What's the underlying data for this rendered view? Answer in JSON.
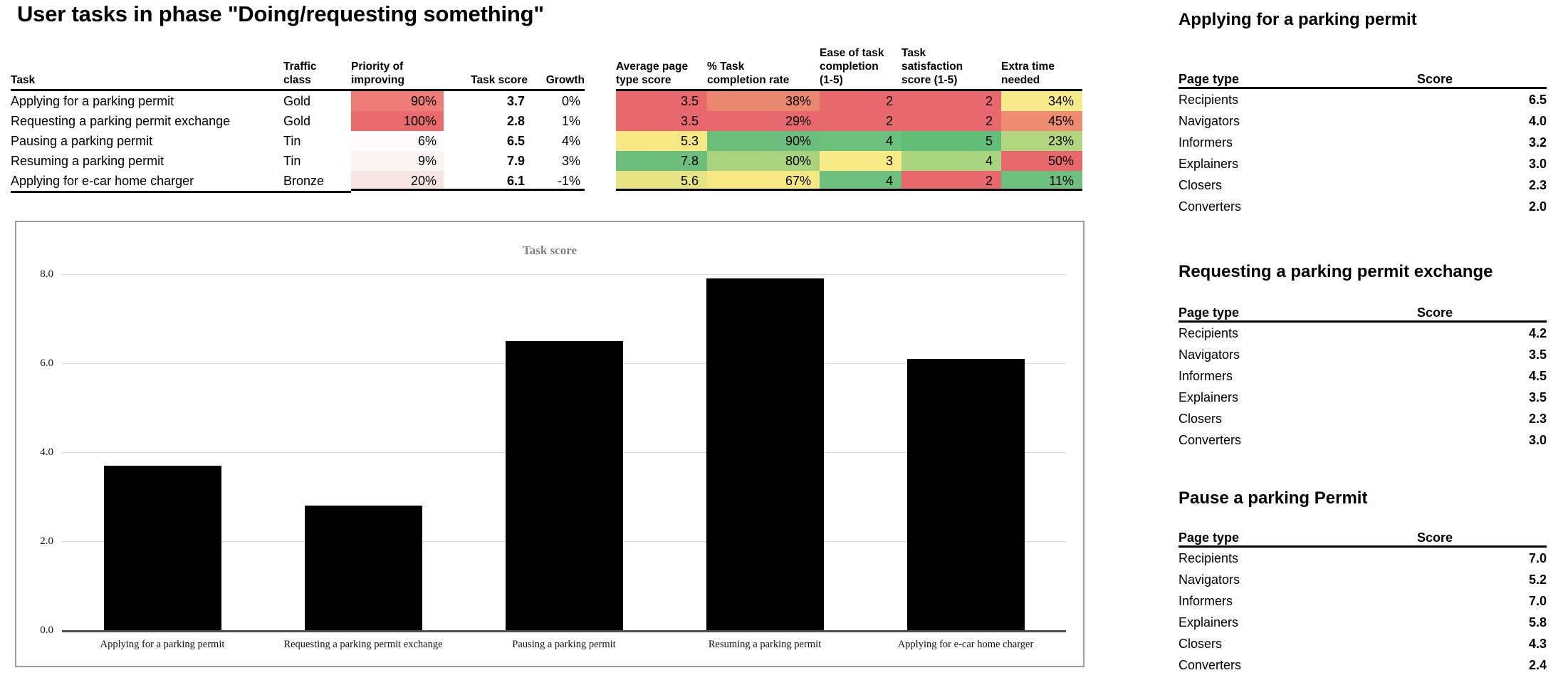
{
  "title": "User tasks in phase \"Doing/requesting something\"",
  "main_table": {
    "headers": {
      "task": "Task",
      "traffic_class": "Traffic\nclass",
      "priority": "Priority of\nimproving",
      "task_score": "Task score",
      "growth": "Growth",
      "avg_page_score": "Average page\ntype score",
      "completion_rate": "% Task\ncompletion rate",
      "ease": "Ease of task\ncompletion\n(1-5)",
      "satisfaction": "Task\nsatisfaction\nscore (1-5)",
      "extra_time": "Extra time\nneeded"
    },
    "rows": [
      {
        "task": "Applying for a parking permit",
        "traffic_class": "Gold",
        "priority": "90%",
        "task_score": "3.7",
        "growth": "0%",
        "avg_page_score": "3.5",
        "completion_rate": "38%",
        "ease": "2",
        "satisfaction": "2",
        "extra_time": "34%",
        "colors": {
          "priority": "#EE7C77",
          "avg_page_score": "#E7696D",
          "completion_rate": "#EA8770",
          "ease": "#E7696D",
          "satisfaction": "#E7696D",
          "extra_time": "#F8E98A"
        }
      },
      {
        "task": "Requesting a parking permit exchange",
        "traffic_class": "Gold",
        "priority": "100%",
        "task_score": "2.8",
        "growth": "1%",
        "avg_page_score": "3.5",
        "completion_rate": "29%",
        "ease": "2",
        "satisfaction": "2",
        "extra_time": "45%",
        "colors": {
          "priority": "#EA6B6E",
          "avg_page_score": "#E7696D",
          "completion_rate": "#E7696D",
          "ease": "#E7696D",
          "satisfaction": "#E7696D",
          "extra_time": "#EE8C72"
        }
      },
      {
        "task": "Pausing a parking permit",
        "traffic_class": "Tin",
        "priority": "6%",
        "task_score": "6.5",
        "growth": "4%",
        "avg_page_score": "5.3",
        "completion_rate": "90%",
        "ease": "4",
        "satisfaction": "5",
        "extra_time": "23%",
        "colors": {
          "priority": "#FDFBFB",
          "avg_page_score": "#F7E884",
          "completion_rate": "#6DBE7C",
          "ease": "#6CBF7C",
          "satisfaction": "#63BE7A",
          "extra_time": "#B2D680"
        }
      },
      {
        "task": "Resuming a parking permit",
        "traffic_class": "Tin",
        "priority": "9%",
        "task_score": "7.9",
        "growth": "3%",
        "avg_page_score": "7.8",
        "completion_rate": "80%",
        "ease": "3",
        "satisfaction": "4",
        "extra_time": "50%",
        "colors": {
          "priority": "#FCF4F4",
          "avg_page_score": "#6DBE7C",
          "completion_rate": "#A9D37F",
          "ease": "#F8EA85",
          "satisfaction": "#A9D480",
          "extra_time": "#E8696B"
        }
      },
      {
        "task": "Applying for  e-car home charger",
        "traffic_class": "Bronze",
        "priority": "20%",
        "task_score": "6.1",
        "growth": "-1%",
        "avg_page_score": "5.6",
        "completion_rate": "67%",
        "ease": "4",
        "satisfaction": "2",
        "extra_time": "11%",
        "colors": {
          "priority": "#F8E6E4",
          "avg_page_score": "#E7E483",
          "completion_rate": "#F7E884",
          "ease": "#6CBF7C",
          "satisfaction": "#E7696D",
          "extra_time": "#6DC07D"
        }
      }
    ]
  },
  "side_tables": [
    {
      "title": "Applying for a parking permit",
      "headers": [
        "Page type",
        "Score"
      ],
      "rows": [
        [
          "Recipients",
          "6.5"
        ],
        [
          "Navigators",
          "4.0"
        ],
        [
          "Informers",
          "3.2"
        ],
        [
          "Explainers",
          "3.0"
        ],
        [
          "Closers",
          "2.3"
        ],
        [
          "Converters",
          "2.0"
        ]
      ]
    },
    {
      "title": "Requesting a parking permit exchange",
      "headers": [
        "Page type",
        "Score"
      ],
      "rows": [
        [
          "Recipients",
          "4.2"
        ],
        [
          "Navigators",
          "3.5"
        ],
        [
          "Informers",
          "4.5"
        ],
        [
          "Explainers",
          "3.5"
        ],
        [
          "Closers",
          "2.3"
        ],
        [
          "Converters",
          "3.0"
        ]
      ]
    },
    {
      "title": "Pause a parking Permit",
      "headers": [
        "Page type",
        "Score"
      ],
      "rows": [
        [
          "Recipients",
          "7.0"
        ],
        [
          "Navigators",
          "5.2"
        ],
        [
          "Informers",
          "7.0"
        ],
        [
          "Explainers",
          "5.8"
        ],
        [
          "Closers",
          "4.3"
        ],
        [
          "Converters",
          "2.4"
        ]
      ]
    }
  ],
  "chart_data": {
    "type": "bar",
    "title": "Task score",
    "title_color": "#7f7f7f",
    "categories": [
      "Applying for a parking permit",
      "Requesting a parking permit exchange",
      "Pausing a parking permit",
      "Resuming a parking permit",
      "Applying for  e-car home charger"
    ],
    "values": [
      3.7,
      2.8,
      6.5,
      7.9,
      6.1
    ],
    "xlabel": "",
    "ylabel": "",
    "ylim": [
      0,
      8
    ],
    "yticks": [
      0,
      2,
      4,
      6,
      8
    ],
    "ytick_labels": [
      "0.0",
      "2.0",
      "4.0",
      "6.0",
      "8.0"
    ],
    "bar_color": "#000000",
    "grid": true,
    "legend": false
  }
}
